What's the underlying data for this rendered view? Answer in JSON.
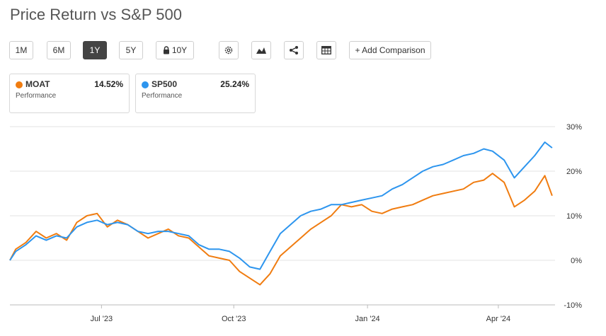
{
  "title": "Price Return vs S&P 500",
  "range_buttons": [
    {
      "label": "1M",
      "active": false
    },
    {
      "label": "6M",
      "active": false
    },
    {
      "label": "1Y",
      "active": true
    },
    {
      "label": "5Y",
      "active": false
    },
    {
      "label": "10Y",
      "active": false,
      "locked": true
    }
  ],
  "toolbar_icons": [
    "gear-icon",
    "area-chart-icon",
    "share-icon",
    "table-icon"
  ],
  "add_comparison_label": "+ Add Comparison",
  "cards": [
    {
      "symbol": "MOAT",
      "value": "14.52%",
      "subtitle": "Performance",
      "color": "#f07c10"
    },
    {
      "symbol": "SP500",
      "value": "25.24%",
      "subtitle": "Performance",
      "color": "#2d95ee"
    }
  ],
  "chart_data": {
    "type": "line",
    "title": "",
    "xlabel": "",
    "ylabel": "",
    "ylim": [
      -10,
      30
    ],
    "yticks": [
      30,
      20,
      10,
      0,
      -10
    ],
    "ytick_labels": [
      "30%",
      "20%",
      "10%",
      "0%",
      "-10%"
    ],
    "xticks": [
      {
        "label": "Jul '23",
        "x": "2023-07-03"
      },
      {
        "label": "Oct '23",
        "x": "2023-10-02"
      },
      {
        "label": "Jan '24",
        "x": "2024-01-02"
      },
      {
        "label": "Apr '24",
        "x": "2024-04-01"
      }
    ],
    "xlim": [
      "2023-05-01",
      "2024-05-10"
    ],
    "grid": true,
    "series": [
      {
        "name": "MOAT",
        "color": "#f07c10",
        "x": [
          "2023-05-01",
          "2023-05-05",
          "2023-05-12",
          "2023-05-19",
          "2023-05-26",
          "2023-06-02",
          "2023-06-09",
          "2023-06-16",
          "2023-06-23",
          "2023-06-30",
          "2023-07-07",
          "2023-07-14",
          "2023-07-21",
          "2023-07-28",
          "2023-08-04",
          "2023-08-11",
          "2023-08-18",
          "2023-08-25",
          "2023-09-01",
          "2023-09-08",
          "2023-09-15",
          "2023-09-22",
          "2023-09-29",
          "2023-10-06",
          "2023-10-13",
          "2023-10-20",
          "2023-10-27",
          "2023-11-03",
          "2023-11-10",
          "2023-11-17",
          "2023-11-24",
          "2023-12-01",
          "2023-12-08",
          "2023-12-15",
          "2023-12-22",
          "2023-12-29",
          "2024-01-05",
          "2024-01-12",
          "2024-01-19",
          "2024-01-26",
          "2024-02-02",
          "2024-02-09",
          "2024-02-16",
          "2024-02-23",
          "2024-03-01",
          "2024-03-08",
          "2024-03-15",
          "2024-03-22",
          "2024-03-28",
          "2024-04-05",
          "2024-04-12",
          "2024-04-19",
          "2024-04-26",
          "2024-05-03",
          "2024-05-08"
        ],
        "y": [
          0.0,
          2.5,
          4.0,
          6.5,
          5.0,
          6.0,
          4.5,
          8.5,
          10.0,
          10.5,
          7.5,
          9.0,
          8.0,
          6.5,
          5.0,
          6.0,
          7.0,
          5.5,
          5.0,
          3.0,
          1.0,
          0.5,
          0.0,
          -2.5,
          -4.0,
          -5.5,
          -3.0,
          1.0,
          3.0,
          5.0,
          7.0,
          8.5,
          10.0,
          12.5,
          12.0,
          12.5,
          11.0,
          10.5,
          11.5,
          12.0,
          12.5,
          13.5,
          14.5,
          15.0,
          15.5,
          16.0,
          17.5,
          18.0,
          19.5,
          17.5,
          12.0,
          13.5,
          15.5,
          19.0,
          14.5
        ]
      },
      {
        "name": "SP500",
        "color": "#2d95ee",
        "x": [
          "2023-05-01",
          "2023-05-05",
          "2023-05-12",
          "2023-05-19",
          "2023-05-26",
          "2023-06-02",
          "2023-06-09",
          "2023-06-16",
          "2023-06-23",
          "2023-06-30",
          "2023-07-07",
          "2023-07-14",
          "2023-07-21",
          "2023-07-28",
          "2023-08-04",
          "2023-08-11",
          "2023-08-18",
          "2023-08-25",
          "2023-09-01",
          "2023-09-08",
          "2023-09-15",
          "2023-09-22",
          "2023-09-29",
          "2023-10-06",
          "2023-10-13",
          "2023-10-20",
          "2023-10-27",
          "2023-11-03",
          "2023-11-10",
          "2023-11-17",
          "2023-11-24",
          "2023-12-01",
          "2023-12-08",
          "2023-12-15",
          "2023-12-22",
          "2023-12-29",
          "2024-01-05",
          "2024-01-12",
          "2024-01-19",
          "2024-01-26",
          "2024-02-02",
          "2024-02-09",
          "2024-02-16",
          "2024-02-23",
          "2024-03-01",
          "2024-03-08",
          "2024-03-15",
          "2024-03-22",
          "2024-03-28",
          "2024-04-05",
          "2024-04-12",
          "2024-04-19",
          "2024-04-26",
          "2024-05-03",
          "2024-05-08"
        ],
        "y": [
          0.0,
          2.0,
          3.5,
          5.5,
          4.5,
          5.5,
          5.0,
          7.5,
          8.5,
          9.0,
          8.0,
          8.5,
          8.0,
          6.5,
          6.0,
          6.5,
          6.5,
          6.0,
          5.5,
          3.5,
          2.5,
          2.5,
          2.0,
          0.5,
          -1.5,
          -2.0,
          2.0,
          6.0,
          8.0,
          10.0,
          11.0,
          11.5,
          12.5,
          12.5,
          13.0,
          13.5,
          14.0,
          14.5,
          16.0,
          17.0,
          18.5,
          20.0,
          21.0,
          21.5,
          22.5,
          23.5,
          24.0,
          25.0,
          24.5,
          22.5,
          18.5,
          21.0,
          23.5,
          26.5,
          25.24
        ]
      }
    ]
  }
}
